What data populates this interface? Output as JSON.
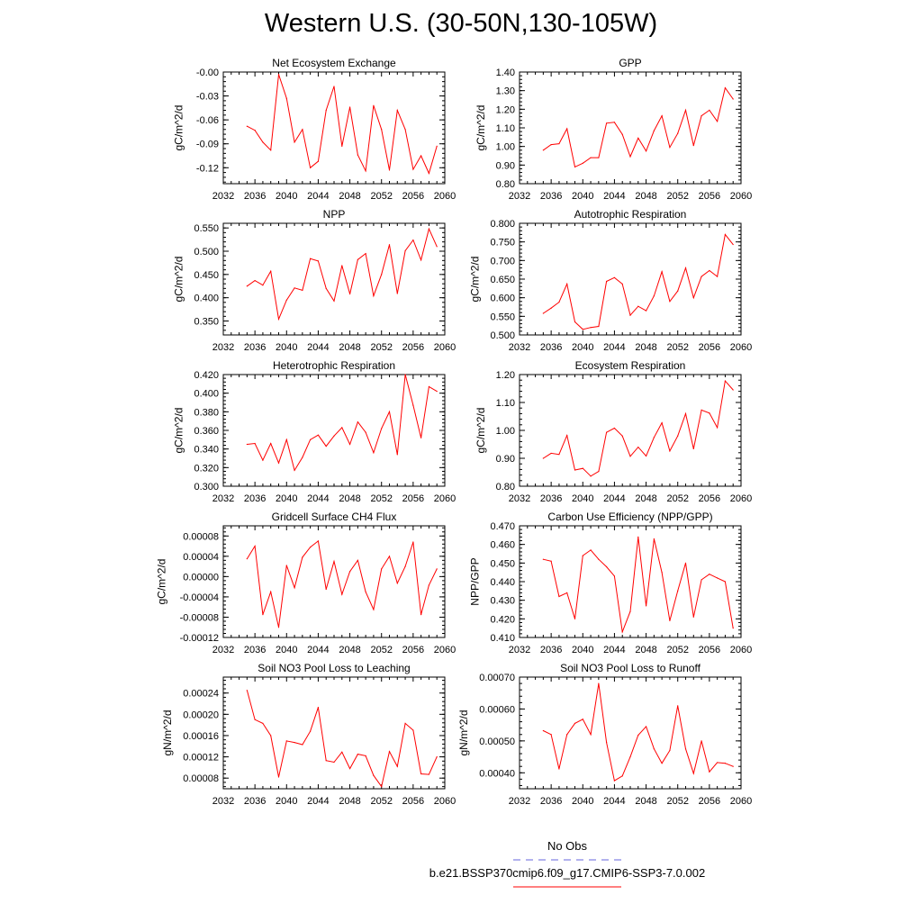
{
  "title": "Western U.S. (30-50N,130-105W)",
  "x_ticks": [
    "2032",
    "2036",
    "2040",
    "2044",
    "2048",
    "2052",
    "2056",
    "2060"
  ],
  "legend": {
    "entries": [
      {
        "label": "No Obs",
        "color": "#6666dd",
        "style": "dashed"
      },
      {
        "label": "b.e21.BSSP370cmip6.f09_g17.CMIP6-SSP3-7.0.002",
        "color": "#ff0000",
        "style": "solid"
      }
    ]
  },
  "line_color": "#ff0000",
  "chart_data": [
    {
      "type": "line",
      "title": "Net Ecosystem Exchange",
      "ylabel": "gC/m^2/d",
      "xlim": [
        2032,
        2060
      ],
      "ylim": [
        -0.14,
        0.0
      ],
      "yticks": [
        "-0.00",
        "-0.03",
        "-0.06",
        "-0.09",
        "-0.12"
      ],
      "ytick_values": [
        0.0,
        -0.03,
        -0.06,
        -0.09,
        -0.12
      ],
      "x": [
        2035,
        2036,
        2037,
        2038,
        2039,
        2040,
        2041,
        2042,
        2043,
        2044,
        2045,
        2046,
        2047,
        2048,
        2049,
        2050,
        2051,
        2052,
        2053,
        2054,
        2055,
        2056,
        2057,
        2058,
        2059
      ],
      "values": [
        -0.068,
        -0.073,
        -0.088,
        -0.098,
        -0.003,
        -0.033,
        -0.088,
        -0.072,
        -0.12,
        -0.112,
        -0.048,
        -0.018,
        -0.093,
        -0.044,
        -0.104,
        -0.124,
        -0.042,
        -0.072,
        -0.123,
        -0.048,
        -0.072,
        -0.122,
        -0.105,
        -0.127,
        -0.093
      ]
    },
    {
      "type": "line",
      "title": "GPP",
      "ylabel": "gC/m^2/d",
      "xlim": [
        2032,
        2060
      ],
      "ylim": [
        0.8,
        1.4
      ],
      "yticks": [
        "0.80",
        "0.90",
        "1.00",
        "1.10",
        "1.20",
        "1.30",
        "1.40"
      ],
      "ytick_values": [
        0.8,
        0.9,
        1.0,
        1.1,
        1.2,
        1.3,
        1.4
      ],
      "x": [
        2035,
        2036,
        2037,
        2038,
        2039,
        2040,
        2041,
        2042,
        2043,
        2044,
        2045,
        2046,
        2047,
        2048,
        2049,
        2050,
        2051,
        2052,
        2053,
        2054,
        2055,
        2056,
        2057,
        2058,
        2059
      ],
      "values": [
        0.98,
        1.01,
        1.015,
        1.095,
        0.89,
        0.91,
        0.94,
        0.94,
        1.125,
        1.13,
        1.065,
        0.945,
        1.045,
        0.975,
        1.085,
        1.165,
        0.995,
        1.07,
        1.195,
        1.005,
        1.165,
        1.195,
        1.135,
        1.315,
        1.255
      ]
    },
    {
      "type": "line",
      "title": "NPP",
      "ylabel": "gC/m^2/d",
      "xlim": [
        2032,
        2060
      ],
      "ylim": [
        0.32,
        0.56
      ],
      "yticks": [
        "0.350",
        "0.400",
        "0.450",
        "0.500",
        "0.550"
      ],
      "ytick_values": [
        0.35,
        0.4,
        0.45,
        0.5,
        0.55
      ],
      "x": [
        2035,
        2036,
        2037,
        2038,
        2039,
        2040,
        2041,
        2042,
        2043,
        2044,
        2045,
        2046,
        2047,
        2048,
        2049,
        2050,
        2051,
        2052,
        2053,
        2054,
        2055,
        2056,
        2057,
        2058,
        2059
      ],
      "values": [
        0.425,
        0.437,
        0.427,
        0.457,
        0.354,
        0.395,
        0.421,
        0.416,
        0.484,
        0.479,
        0.42,
        0.393,
        0.469,
        0.408,
        0.482,
        0.495,
        0.404,
        0.45,
        0.514,
        0.409,
        0.501,
        0.524,
        0.481,
        0.548,
        0.51
      ]
    },
    {
      "type": "line",
      "title": "Autotrophic Respiration",
      "ylabel": "gC/m^2/d",
      "xlim": [
        2032,
        2060
      ],
      "ylim": [
        0.5,
        0.8
      ],
      "yticks": [
        "0.500",
        "0.550",
        "0.600",
        "0.650",
        "0.700",
        "0.750",
        "0.800"
      ],
      "ytick_values": [
        0.5,
        0.55,
        0.6,
        0.65,
        0.7,
        0.75,
        0.8
      ],
      "x": [
        2035,
        2036,
        2037,
        2038,
        2039,
        2040,
        2041,
        2042,
        2043,
        2044,
        2045,
        2046,
        2047,
        2048,
        2049,
        2050,
        2051,
        2052,
        2053,
        2054,
        2055,
        2056,
        2057,
        2058,
        2059
      ],
      "values": [
        0.558,
        0.572,
        0.588,
        0.637,
        0.535,
        0.515,
        0.52,
        0.523,
        0.644,
        0.654,
        0.637,
        0.553,
        0.577,
        0.565,
        0.605,
        0.67,
        0.59,
        0.618,
        0.68,
        0.6,
        0.657,
        0.673,
        0.657,
        0.77,
        0.743
      ]
    },
    {
      "type": "line",
      "title": "Heterotrophic Respiration",
      "ylabel": "gC/m^2/d",
      "xlim": [
        2032,
        2060
      ],
      "ylim": [
        0.3,
        0.42
      ],
      "yticks": [
        "0.300",
        "0.320",
        "0.340",
        "0.360",
        "0.380",
        "0.400",
        "0.420"
      ],
      "ytick_values": [
        0.3,
        0.32,
        0.34,
        0.36,
        0.38,
        0.4,
        0.42
      ],
      "x": [
        2035,
        2036,
        2037,
        2038,
        2039,
        2040,
        2041,
        2042,
        2043,
        2044,
        2045,
        2046,
        2047,
        2048,
        2049,
        2050,
        2051,
        2052,
        2053,
        2054,
        2055,
        2056,
        2057,
        2058,
        2059
      ],
      "values": [
        0.345,
        0.346,
        0.328,
        0.346,
        0.325,
        0.35,
        0.317,
        0.331,
        0.35,
        0.355,
        0.343,
        0.354,
        0.363,
        0.345,
        0.369,
        0.358,
        0.336,
        0.362,
        0.38,
        0.334,
        0.42,
        0.387,
        0.352,
        0.407,
        0.402
      ]
    },
    {
      "type": "line",
      "title": "Ecosystem Respiration",
      "ylabel": "gC/m^2/d",
      "xlim": [
        2032,
        2060
      ],
      "ylim": [
        0.8,
        1.2
      ],
      "yticks": [
        "0.80",
        "0.90",
        "1.00",
        "1.10",
        "1.20"
      ],
      "ytick_values": [
        0.8,
        0.9,
        1.0,
        1.1,
        1.2
      ],
      "x": [
        2035,
        2036,
        2037,
        2038,
        2039,
        2040,
        2041,
        2042,
        2043,
        2044,
        2045,
        2046,
        2047,
        2048,
        2049,
        2050,
        2051,
        2052,
        2053,
        2054,
        2055,
        2056,
        2057,
        2058,
        2059
      ],
      "values": [
        0.9,
        0.918,
        0.914,
        0.982,
        0.858,
        0.864,
        0.836,
        0.853,
        0.993,
        1.008,
        0.98,
        0.907,
        0.94,
        0.908,
        0.975,
        1.027,
        0.926,
        0.98,
        1.06,
        0.934,
        1.073,
        1.062,
        1.01,
        1.177,
        1.145
      ]
    },
    {
      "type": "line",
      "title": "Gridcell Surface CH4 Flux",
      "ylabel": "gC/m^2/d",
      "xlim": [
        2032,
        2060
      ],
      "ylim": [
        -0.00012,
        0.0001
      ],
      "yticks": [
        "-0.00012",
        "-0.00008",
        "-0.00004",
        "0.00000",
        "0.00004",
        "0.00008"
      ],
      "ytick_values": [
        -0.00012,
        -8e-05,
        -4e-05,
        0.0,
        4e-05,
        8e-05
      ],
      "x": [
        2035,
        2036,
        2037,
        2038,
        2039,
        2040,
        2041,
        2042,
        2043,
        2044,
        2045,
        2046,
        2047,
        2048,
        2049,
        2050,
        2051,
        2052,
        2053,
        2054,
        2055,
        2056,
        2057,
        2058,
        2059
      ],
      "values": [
        3.5e-05,
        6e-05,
        -7.5e-05,
        -3e-05,
        -0.0001,
        2.2e-05,
        -2.2e-05,
        3.8e-05,
        5.8e-05,
        7e-05,
        -2.5e-05,
        3e-05,
        -3.5e-05,
        1e-05,
        3.2e-05,
        -3e-05,
        -6.5e-05,
        1.5e-05,
        4e-05,
        -1.3e-05,
        2e-05,
        6.8e-05,
        -7.5e-05,
        -1.7e-05,
        1.5e-05
      ]
    },
    {
      "type": "line",
      "title": "Carbon Use Efficiency (NPP/GPP)",
      "ylabel": "NPP/GPP",
      "xlim": [
        2032,
        2060
      ],
      "ylim": [
        0.41,
        0.47
      ],
      "yticks": [
        "0.410",
        "0.420",
        "0.430",
        "0.440",
        "0.450",
        "0.460",
        "0.470"
      ],
      "ytick_values": [
        0.41,
        0.42,
        0.43,
        0.44,
        0.45,
        0.46,
        0.47
      ],
      "x": [
        2035,
        2036,
        2037,
        2038,
        2039,
        2040,
        2041,
        2042,
        2043,
        2044,
        2045,
        2046,
        2047,
        2048,
        2049,
        2050,
        2051,
        2052,
        2053,
        2054,
        2055,
        2056,
        2057,
        2058,
        2059
      ],
      "values": [
        0.452,
        0.451,
        0.432,
        0.434,
        0.42,
        0.454,
        0.457,
        0.452,
        0.448,
        0.443,
        0.413,
        0.424,
        0.464,
        0.427,
        0.463,
        0.445,
        0.419,
        0.435,
        0.45,
        0.421,
        0.441,
        0.444,
        0.442,
        0.44,
        0.415
      ]
    },
    {
      "type": "line",
      "title": "Soil NO3 Pool Loss to Leaching",
      "ylabel": "gN/m^2/d",
      "xlim": [
        2032,
        2060
      ],
      "ylim": [
        6e-05,
        0.00027
      ],
      "yticks": [
        "0.00008",
        "0.00012",
        "0.00016",
        "0.00020",
        "0.00024"
      ],
      "ytick_values": [
        8e-05,
        0.00012,
        0.00016,
        0.0002,
        0.00024
      ],
      "x": [
        2035,
        2036,
        2037,
        2038,
        2039,
        2040,
        2041,
        2042,
        2043,
        2044,
        2045,
        2046,
        2047,
        2048,
        2049,
        2050,
        2051,
        2052,
        2053,
        2054,
        2055,
        2056,
        2057,
        2058,
        2059
      ],
      "values": [
        0.000245,
        0.00019,
        0.000183,
        0.00016,
        8.2e-05,
        0.00015,
        0.000147,
        0.000143,
        0.000168,
        0.000213,
        0.000113,
        0.00011,
        0.000129,
        9.8e-05,
        0.000125,
        0.000122,
        8.5e-05,
        6.4e-05,
        0.00013,
        0.000102,
        0.000183,
        0.00017,
        8.8e-05,
        8.7e-05,
        0.00012
      ]
    },
    {
      "type": "line",
      "title": "Soil NO3 Pool Loss to Runoff",
      "ylabel": "gN/m^2/d",
      "xlim": [
        2032,
        2060
      ],
      "ylim": [
        0.00035,
        0.0007
      ],
      "yticks": [
        "0.00040",
        "0.00050",
        "0.00060",
        "0.00070"
      ],
      "ytick_values": [
        0.0004,
        0.0005,
        0.0006,
        0.0007
      ],
      "x": [
        2035,
        2036,
        2037,
        2038,
        2039,
        2040,
        2041,
        2042,
        2043,
        2044,
        2045,
        2046,
        2047,
        2048,
        2049,
        2050,
        2051,
        2052,
        2053,
        2054,
        2055,
        2056,
        2057,
        2058,
        2059
      ],
      "values": [
        0.000532,
        0.00052,
        0.000412,
        0.00052,
        0.000555,
        0.000568,
        0.00052,
        0.00068,
        0.000495,
        0.000375,
        0.00039,
        0.00045,
        0.000518,
        0.000545,
        0.000475,
        0.00043,
        0.00047,
        0.00061,
        0.000475,
        0.000398,
        0.0005,
        0.000403,
        0.000432,
        0.00043,
        0.00042
      ]
    }
  ]
}
